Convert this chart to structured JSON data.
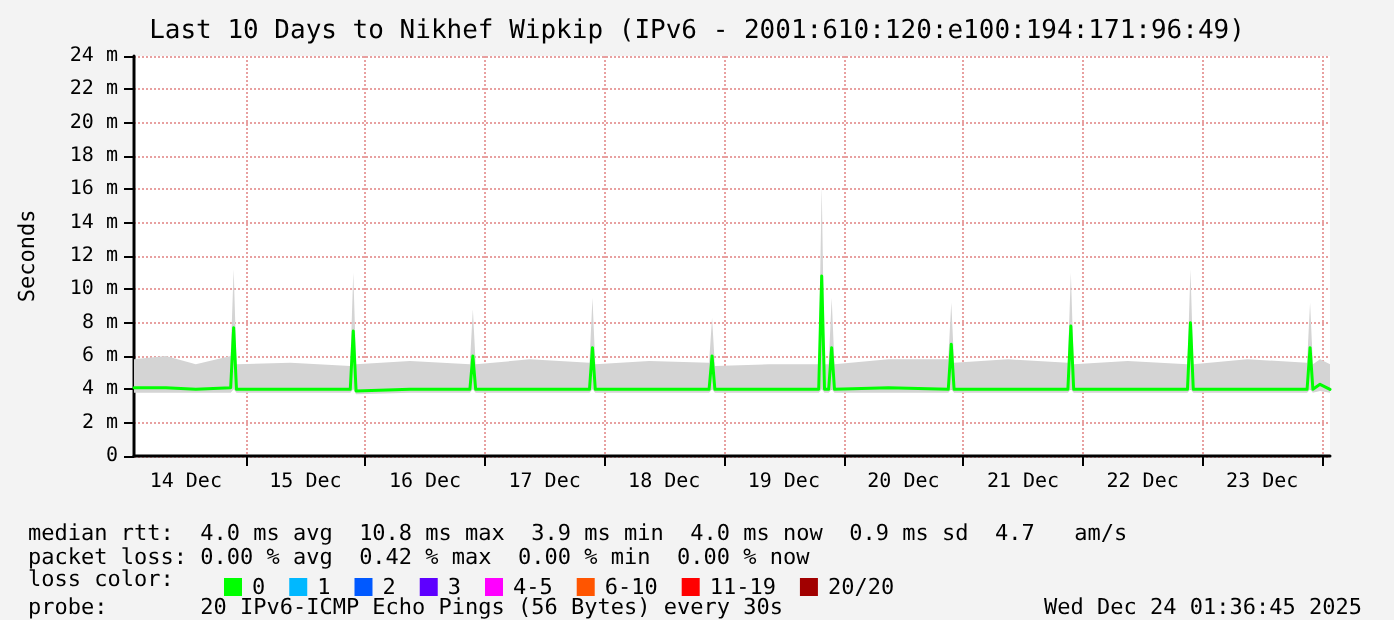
{
  "chart_data": {
    "type": "line",
    "title": "Last 10 Days to Nikhef Wipkip (IPv6 - 2001:610:120:e100:194:171:96:49)",
    "ylabel": "Seconds",
    "xlim": [
      "2025-12-14T01:36",
      "2025-12-24T01:36"
    ],
    "xticks": [
      {
        "value": "2025-12-14T12:00",
        "label": "14 Dec"
      },
      {
        "value": "2025-12-15T00:00",
        "label": null
      },
      {
        "value": "2025-12-15T12:00",
        "label": "15 Dec"
      },
      {
        "value": "2025-12-16T00:00",
        "label": null
      },
      {
        "value": "2025-12-16T12:00",
        "label": "16 Dec"
      },
      {
        "value": "2025-12-17T00:00",
        "label": null
      },
      {
        "value": "2025-12-17T12:00",
        "label": "17 Dec"
      },
      {
        "value": "2025-12-18T00:00",
        "label": null
      },
      {
        "value": "2025-12-18T12:00",
        "label": "18 Dec"
      },
      {
        "value": "2025-12-19T00:00",
        "label": null
      },
      {
        "value": "2025-12-19T12:00",
        "label": "19 Dec"
      },
      {
        "value": "2025-12-20T00:00",
        "label": null
      },
      {
        "value": "2025-12-20T12:00",
        "label": "20 Dec"
      },
      {
        "value": "2025-12-21T00:00",
        "label": null
      },
      {
        "value": "2025-12-21T12:00",
        "label": "21 Dec"
      },
      {
        "value": "2025-12-22T00:00",
        "label": null
      },
      {
        "value": "2025-12-22T12:00",
        "label": "22 Dec"
      },
      {
        "value": "2025-12-23T00:00",
        "label": null
      },
      {
        "value": "2025-12-23T12:00",
        "label": "23 Dec"
      },
      {
        "value": "2025-12-24T00:00",
        "label": null
      }
    ],
    "ylim": [
      0,
      24
    ],
    "yticks": [
      0,
      {
        "value": 2,
        "label": "2 m"
      },
      {
        "value": 4,
        "label": "4 m"
      },
      {
        "value": 6,
        "label": "6 m"
      },
      {
        "value": 8,
        "label": "8 m"
      },
      {
        "value": 10,
        "label": "10 m"
      },
      {
        "value": 12,
        "label": "12 m"
      },
      {
        "value": 14,
        "label": "14 m"
      },
      {
        "value": 16,
        "label": "16 m"
      },
      {
        "value": 18,
        "label": "18 m"
      },
      {
        "value": 20,
        "label": "20 m"
      },
      {
        "value": 22,
        "label": "22 m"
      },
      {
        "value": 24,
        "label": "24 m"
      }
    ],
    "grid": true,
    "legend": "bottom",
    "legend_title": "loss color:",
    "marker": "none",
    "x": [
      "2025-12-14T01:36",
      "2025-12-14T08:00",
      "2025-12-14T14:00",
      "2025-12-14T21:00",
      "2025-12-14T21:36",
      "2025-12-14T22:10",
      "2025-12-15T09:00",
      "2025-12-15T21:00",
      "2025-12-15T21:36",
      "2025-12-15T22:10",
      "2025-12-16T09:00",
      "2025-12-16T21:00",
      "2025-12-16T21:36",
      "2025-12-16T22:10",
      "2025-12-17T09:00",
      "2025-12-17T21:00",
      "2025-12-17T21:36",
      "2025-12-17T22:10",
      "2025-12-18T09:00",
      "2025-12-18T21:00",
      "2025-12-18T21:36",
      "2025-12-18T22:10",
      "2025-12-19T09:00",
      "2025-12-19T19:00",
      "2025-12-19T19:36",
      "2025-12-19T20:10",
      "2025-12-19T21:00",
      "2025-12-19T21:36",
      "2025-12-19T22:10",
      "2025-12-20T09:00",
      "2025-12-20T21:00",
      "2025-12-20T21:36",
      "2025-12-20T22:10",
      "2025-12-21T09:00",
      "2025-12-21T21:00",
      "2025-12-21T21:36",
      "2025-12-21T22:10",
      "2025-12-22T09:00",
      "2025-12-22T21:00",
      "2025-12-22T21:36",
      "2025-12-22T22:10",
      "2025-12-23T09:00",
      "2025-12-23T21:00",
      "2025-12-23T21:36",
      "2025-12-23T22:10",
      "2025-12-23T23:36",
      "2025-12-24T01:36"
    ],
    "series": [
      {
        "name": "0",
        "color": "#00ff00",
        "values": [
          4.1,
          4.1,
          4.0,
          4.1,
          7.7,
          4.0,
          4.0,
          4.0,
          7.5,
          3.9,
          4.0,
          4.0,
          6.0,
          4.0,
          4.0,
          4.0,
          6.5,
          4.0,
          4.0,
          4.0,
          6.0,
          4.0,
          4.0,
          4.0,
          10.8,
          4.0,
          4.0,
          6.5,
          4.0,
          4.1,
          4.0,
          6.7,
          4.0,
          4.0,
          4.0,
          7.8,
          4.0,
          4.0,
          4.0,
          8.0,
          4.0,
          4.0,
          4.0,
          6.5,
          4.0,
          4.3,
          4.0
        ],
        "lower": [
          3.8,
          3.8,
          3.8,
          3.8,
          4.0,
          3.8,
          3.8,
          3.8,
          4.0,
          3.7,
          3.8,
          3.8,
          4.0,
          3.8,
          3.8,
          3.8,
          4.0,
          3.8,
          3.8,
          3.8,
          4.0,
          3.8,
          3.8,
          3.8,
          4.0,
          3.8,
          3.8,
          4.0,
          3.8,
          3.8,
          3.8,
          4.0,
          3.8,
          3.8,
          3.8,
          4.0,
          3.8,
          3.8,
          3.8,
          4.0,
          3.8,
          3.8,
          3.8,
          4.0,
          3.8,
          3.9,
          3.8
        ],
        "upper": [
          5.8,
          6.0,
          5.5,
          6.0,
          11.2,
          5.5,
          5.6,
          5.4,
          11.0,
          5.5,
          5.7,
          5.5,
          8.8,
          5.5,
          5.8,
          5.6,
          9.5,
          5.5,
          5.7,
          5.6,
          8.3,
          5.4,
          5.5,
          5.5,
          16.2,
          5.5,
          5.5,
          9.5,
          5.5,
          5.8,
          5.8,
          9.2,
          5.6,
          5.8,
          5.6,
          11.0,
          5.5,
          5.7,
          5.5,
          11.2,
          5.5,
          5.8,
          5.6,
          9.2,
          5.5,
          5.8,
          5.5
        ]
      },
      {
        "name": "1",
        "color": "#00b8ff",
        "values": [
          null,
          null,
          null,
          null,
          null,
          null,
          null,
          null,
          null,
          null,
          null,
          null,
          null,
          null,
          null,
          null,
          null,
          null,
          null,
          null,
          null,
          null,
          null,
          null,
          null,
          null,
          null,
          null,
          null,
          null,
          null,
          null,
          null,
          null,
          null,
          null,
          null,
          null,
          null,
          null,
          null,
          null,
          null,
          null,
          null,
          null,
          null
        ]
      },
      {
        "name": "2",
        "color": "#0059ff",
        "values": [
          null,
          null,
          null,
          null,
          null,
          null,
          null,
          null,
          null,
          null,
          null,
          null,
          null,
          null,
          null,
          null,
          null,
          null,
          null,
          null,
          null,
          null,
          null,
          null,
          null,
          null,
          null,
          null,
          null,
          null,
          null,
          null,
          null,
          null,
          null,
          null,
          null,
          null,
          null,
          null,
          null,
          null,
          null,
          null,
          null,
          null,
          null
        ]
      },
      {
        "name": "3",
        "color": "#5e00ff",
        "values": [
          null,
          null,
          null,
          null,
          null,
          null,
          null,
          null,
          null,
          null,
          null,
          null,
          null,
          null,
          null,
          null,
          null,
          null,
          null,
          null,
          null,
          null,
          null,
          null,
          null,
          null,
          null,
          null,
          null,
          null,
          null,
          null,
          null,
          null,
          null,
          null,
          null,
          null,
          null,
          null,
          null,
          null,
          null,
          null,
          null,
          null,
          null
        ]
      },
      {
        "name": "4-5",
        "color": "#ff00ff",
        "values": [
          null,
          null,
          null,
          null,
          null,
          null,
          null,
          null,
          null,
          null,
          null,
          null,
          null,
          null,
          null,
          null,
          null,
          null,
          null,
          null,
          null,
          null,
          null,
          null,
          null,
          null,
          null,
          null,
          null,
          null,
          null,
          null,
          null,
          null,
          null,
          null,
          null,
          null,
          null,
          null,
          null,
          null,
          null,
          null,
          null,
          null,
          null
        ]
      },
      {
        "name": "6-10",
        "color": "#ff5500",
        "values": [
          null,
          null,
          null,
          null,
          null,
          null,
          null,
          null,
          null,
          null,
          null,
          null,
          null,
          null,
          null,
          null,
          null,
          null,
          null,
          null,
          null,
          null,
          null,
          null,
          null,
          null,
          null,
          null,
          null,
          null,
          null,
          null,
          null,
          null,
          null,
          null,
          null,
          null,
          null,
          null,
          null,
          null,
          null,
          null,
          null,
          null,
          null
        ]
      },
      {
        "name": "11-19",
        "color": "#ff0000",
        "values": [
          null,
          null,
          null,
          null,
          null,
          null,
          null,
          null,
          null,
          null,
          null,
          null,
          null,
          null,
          null,
          null,
          null,
          null,
          null,
          null,
          null,
          null,
          null,
          null,
          null,
          null,
          null,
          null,
          null,
          null,
          null,
          null,
          null,
          null,
          null,
          null,
          null,
          null,
          null,
          null,
          null,
          null,
          null,
          null,
          null,
          null,
          null
        ]
      },
      {
        "name": "20/20",
        "color": "#a10000",
        "values": [
          null,
          null,
          null,
          null,
          null,
          null,
          null,
          null,
          null,
          null,
          null,
          null,
          null,
          null,
          null,
          null,
          null,
          null,
          null,
          null,
          null,
          null,
          null,
          null,
          null,
          null,
          null,
          null,
          null,
          null,
          null,
          null,
          null,
          null,
          null,
          null,
          null,
          null,
          null,
          null,
          null,
          null,
          null,
          null,
          null,
          null,
          null
        ]
      }
    ],
    "annotations": [
      "median rtt:  4.0 ms avg  10.8 ms max  3.9 ms min  4.0 ms now  0.9 ms sd  4.7   am/s",
      "packet loss: 0.00 % avg  0.42 % max  0.00 % min  0.00 % now",
      "probe:       20 IPv6-ICMP Echo Pings (56 Bytes) every 30s",
      "Wed Dec 24 01:36:45 2025"
    ]
  }
}
